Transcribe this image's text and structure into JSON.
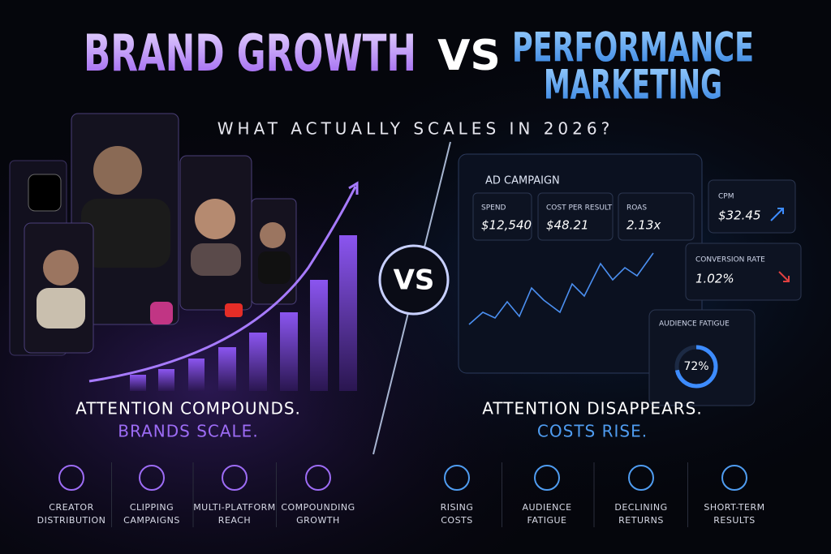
{
  "title": {
    "left": "BRAND GROWTH",
    "vs": "VS",
    "right_line1": "PERFORMANCE",
    "right_line2": "MARKETING"
  },
  "subtitle": "WHAT ACTUALLY SCALES IN 2026?",
  "center_badge": "VS",
  "dashboard": {
    "title": "AD CAMPAIGN",
    "metrics": [
      {
        "label": "SPEND",
        "value": "$12,540"
      },
      {
        "label": "COST PER RESULT",
        "value": "$48.21"
      },
      {
        "label": "ROAS",
        "value": "2.13x"
      }
    ],
    "cards": [
      {
        "label": "CPM",
        "value": "$32.45"
      },
      {
        "label": "CONVERSION RATE",
        "value": "1.02%"
      }
    ],
    "fatigue": {
      "label": "AUDIENCE FATIGUE",
      "value": 72,
      "value_label": "72%"
    }
  },
  "left": {
    "line1": "ATTENTION COMPOUNDS.",
    "line2": "BRANDS SCALE.",
    "features": [
      {
        "label": [
          "CREATOR",
          "DISTRIBUTION"
        ]
      },
      {
        "label": [
          "CLIPPING",
          "CAMPAIGNS"
        ]
      },
      {
        "label": [
          "MULTI-PLATFORM",
          "REACH"
        ]
      },
      {
        "label": [
          "COMPOUNDING",
          "GROWTH"
        ]
      }
    ]
  },
  "right": {
    "line1": "ATTENTION DISAPPEARS.",
    "line2": "COSTS RISE.",
    "features": [
      {
        "label": [
          "RISING",
          "COSTS"
        ]
      },
      {
        "label": [
          "AUDIENCE",
          "FATIGUE"
        ]
      },
      {
        "label": [
          "DECLINING",
          "RETURNS"
        ]
      },
      {
        "label": [
          "SHORT-TERM",
          "RESULTS"
        ]
      }
    ]
  }
}
